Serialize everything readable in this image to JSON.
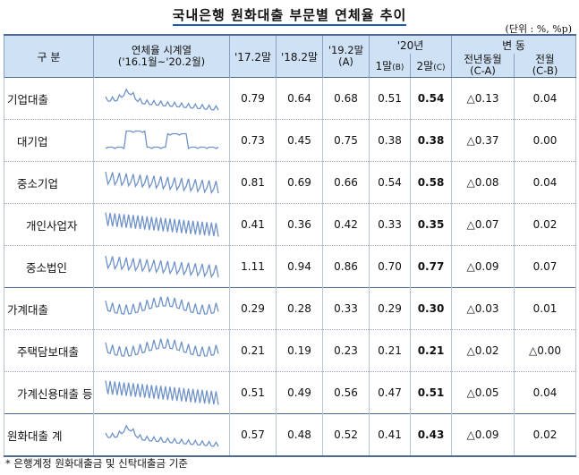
{
  "title": "국내은행 원화대출 부문별 연체율 추이",
  "unit": "(단위 : %, %p)",
  "header": {
    "category": "구 분",
    "series_line1": "연체율 시계열",
    "series_line2": "('16.1월~'20.2월)",
    "col_17": "'17.2말",
    "col_18": "'18.2말",
    "col_19": "'19.2말",
    "col_19_sub": "(A)",
    "group_20": "'20년",
    "col_20_1": "1말",
    "col_20_1_sub": "(B)",
    "col_20_2": "2말",
    "col_20_2_sub": "(C)",
    "group_change": "변 동",
    "col_yoy": "전년동월",
    "col_yoy_sub": "(C-A)",
    "col_mom": "전월",
    "col_mom_sub": "(C-B)"
  },
  "rows": [
    {
      "label": "기업대출",
      "v17": "0.79",
      "v18": "0.64",
      "v19": "0.68",
      "v201": "0.51",
      "v202": "0.54",
      "yoy": "△0.13",
      "mom": "0.04"
    },
    {
      "label": "대기업",
      "v17": "0.73",
      "v18": "0.45",
      "v19": "0.75",
      "v201": "0.38",
      "v202": "0.38",
      "yoy": "△0.37",
      "mom": "0.00"
    },
    {
      "label": "중소기업",
      "v17": "0.81",
      "v18": "0.69",
      "v19": "0.66",
      "v201": "0.54",
      "v202": "0.58",
      "yoy": "△0.08",
      "mom": "0.04"
    },
    {
      "label": "개인사업자",
      "v17": "0.41",
      "v18": "0.36",
      "v19": "0.42",
      "v201": "0.33",
      "v202": "0.35",
      "yoy": "△0.07",
      "mom": "0.02"
    },
    {
      "label": "중소법인",
      "v17": "1.11",
      "v18": "0.94",
      "v19": "0.86",
      "v201": "0.70",
      "v202": "0.77",
      "yoy": "△0.09",
      "mom": "0.07"
    },
    {
      "label": "가계대출",
      "v17": "0.29",
      "v18": "0.28",
      "v19": "0.33",
      "v201": "0.29",
      "v202": "0.30",
      "yoy": "△0.03",
      "mom": "0.01"
    },
    {
      "label": "주택담보대출",
      "v17": "0.21",
      "v18": "0.19",
      "v19": "0.23",
      "v201": "0.21",
      "v202": "0.21",
      "yoy": "△0.02",
      "mom": "△0.00"
    },
    {
      "label": "가계신용대출 등",
      "v17": "0.51",
      "v18": "0.49",
      "v19": "0.56",
      "v201": "0.47",
      "v202": "0.51",
      "yoy": "△0.05",
      "mom": "0.04"
    },
    {
      "label": "원화대출 계",
      "v17": "0.57",
      "v18": "0.48",
      "v19": "0.52",
      "v201": "0.41",
      "v202": "0.43",
      "yoy": "△0.09",
      "mom": "0.02"
    }
  ],
  "footnote": "* 은행계정 원화대출금 및 신탁대출금 기준",
  "colors": {
    "header_bg": "#cfe1f4",
    "sparkline": "#6f93c9",
    "title_underline": "#1a5bb8"
  }
}
